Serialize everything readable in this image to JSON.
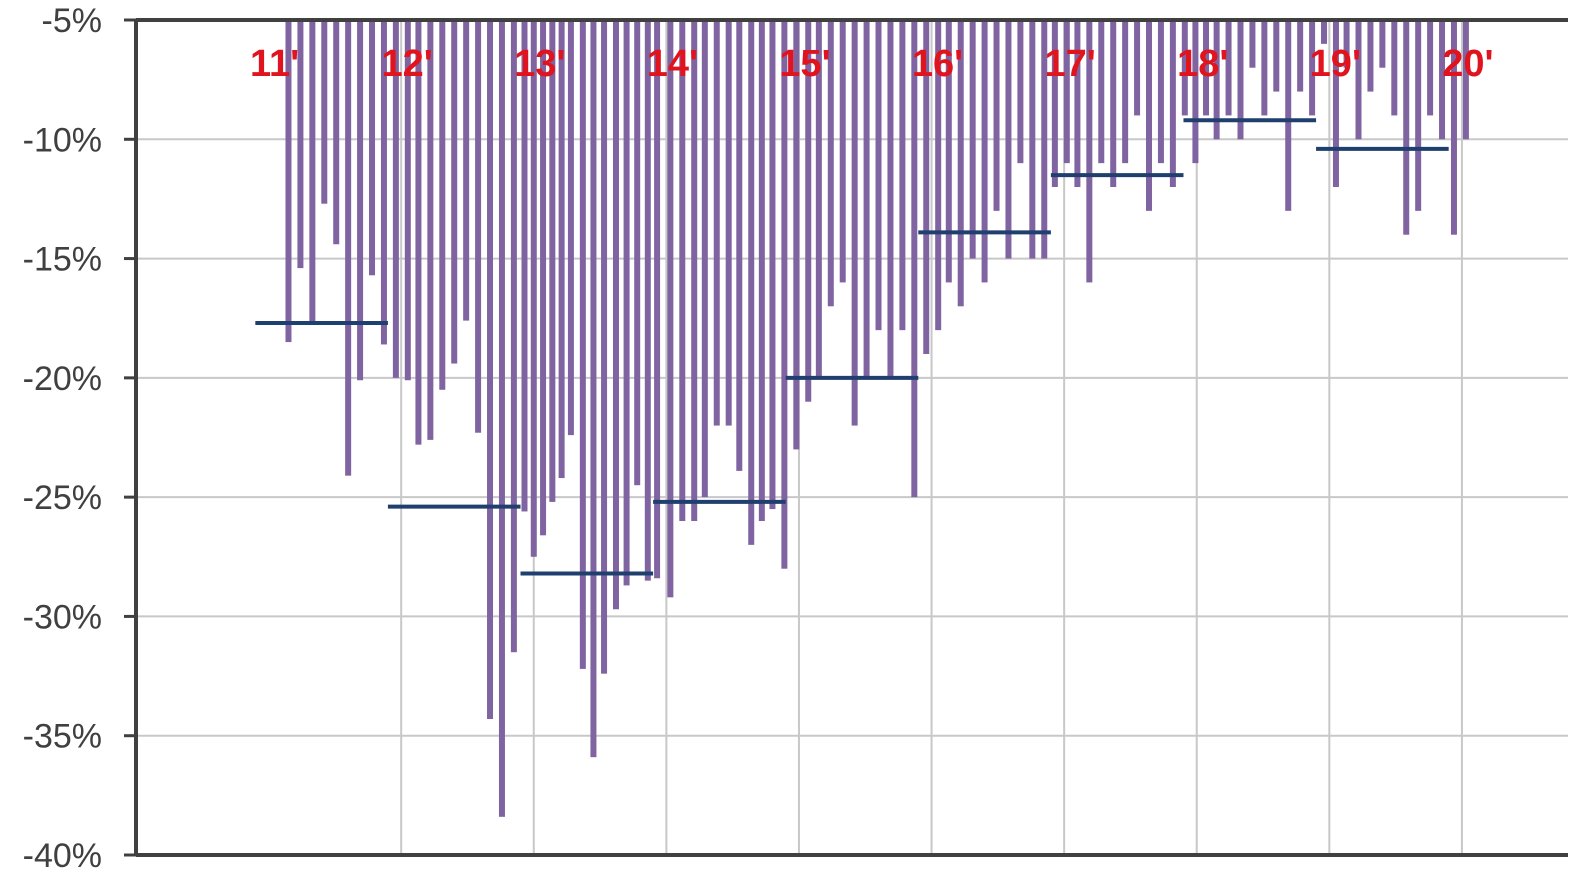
{
  "chart_data": {
    "type": "bar",
    "title": "",
    "xlabel": "",
    "ylabel": "",
    "x_tick_labels": [
      "11'",
      "12'",
      "13'",
      "14'",
      "15'",
      "16'",
      "17'",
      "18'",
      "19'",
      "20'"
    ],
    "y_tick_labels": [
      "-5%",
      "-10%",
      "-15%",
      "-20%",
      "-25%",
      "-30%",
      "-35%",
      "-40%"
    ],
    "y_ticks": [
      -5,
      -10,
      -15,
      -20,
      -25,
      -30,
      -35,
      -40
    ],
    "ylim": [
      -40,
      -5
    ],
    "xlim": [
      2010.0,
      2020.8
    ],
    "bars_hang_from_top": true,
    "grid": true,
    "colors": {
      "bars": "#8064a2",
      "averages": "#1f3f6e",
      "x_tick_labels": "#e0141e",
      "axes": "#404040",
      "grid": "#c8c8c8"
    },
    "series": [
      {
        "values": [
          {
            "x": 2011.15,
            "y": -18.5
          },
          {
            "x": 2011.24,
            "y": -15.4
          },
          {
            "x": 2011.33,
            "y": -17.7
          },
          {
            "x": 2011.42,
            "y": -12.7
          },
          {
            "x": 2011.51,
            "y": -14.4
          },
          {
            "x": 2011.6,
            "y": -24.1
          },
          {
            "x": 2011.69,
            "y": -20.1
          },
          {
            "x": 2011.78,
            "y": -15.7
          },
          {
            "x": 2011.87,
            "y": -18.6
          },
          {
            "x": 2011.96,
            "y": -20.0
          },
          {
            "x": 2012.05,
            "y": -20.1
          },
          {
            "x": 2012.13,
            "y": -22.8
          },
          {
            "x": 2012.22,
            "y": -22.6
          },
          {
            "x": 2012.31,
            "y": -20.5
          },
          {
            "x": 2012.4,
            "y": -19.4
          },
          {
            "x": 2012.49,
            "y": -17.6
          },
          {
            "x": 2012.58,
            "y": -22.3
          },
          {
            "x": 2012.67,
            "y": -34.3
          },
          {
            "x": 2012.76,
            "y": -38.4
          },
          {
            "x": 2012.85,
            "y": -31.5
          },
          {
            "x": 2012.93,
            "y": -25.6
          },
          {
            "x": 2013.0,
            "y": -27.5
          },
          {
            "x": 2013.07,
            "y": -26.6
          },
          {
            "x": 2013.14,
            "y": -25.2
          },
          {
            "x": 2013.21,
            "y": -24.2
          },
          {
            "x": 2013.28,
            "y": -22.4
          },
          {
            "x": 2013.37,
            "y": -32.2
          },
          {
            "x": 2013.45,
            "y": -35.9
          },
          {
            "x": 2013.53,
            "y": -32.4
          },
          {
            "x": 2013.62,
            "y": -29.7
          },
          {
            "x": 2013.7,
            "y": -28.7
          },
          {
            "x": 2013.78,
            "y": -24.5
          },
          {
            "x": 2013.86,
            "y": -28.5
          },
          {
            "x": 2013.93,
            "y": -28.4
          },
          {
            "x": 2014.03,
            "y": -29.2
          },
          {
            "x": 2014.12,
            "y": -26.0
          },
          {
            "x": 2014.21,
            "y": -26.0
          },
          {
            "x": 2014.29,
            "y": -25.0
          },
          {
            "x": 2014.38,
            "y": -22.0
          },
          {
            "x": 2014.47,
            "y": -22.0
          },
          {
            "x": 2014.55,
            "y": -23.9
          },
          {
            "x": 2014.64,
            "y": -27.0
          },
          {
            "x": 2014.72,
            "y": -26.0
          },
          {
            "x": 2014.8,
            "y": -25.5
          },
          {
            "x": 2014.89,
            "y": -28.0
          },
          {
            "x": 2014.98,
            "y": -23.0
          },
          {
            "x": 2015.07,
            "y": -21.0
          },
          {
            "x": 2015.15,
            "y": -20.0
          },
          {
            "x": 2015.24,
            "y": -17.0
          },
          {
            "x": 2015.33,
            "y": -16.0
          },
          {
            "x": 2015.42,
            "y": -22.0
          },
          {
            "x": 2015.51,
            "y": -20.0
          },
          {
            "x": 2015.6,
            "y": -18.0
          },
          {
            "x": 2015.69,
            "y": -20.0
          },
          {
            "x": 2015.78,
            "y": -18.0
          },
          {
            "x": 2015.87,
            "y": -25.0
          },
          {
            "x": 2015.96,
            "y": -19.0
          },
          {
            "x": 2016.05,
            "y": -18.0
          },
          {
            "x": 2016.13,
            "y": -16.0
          },
          {
            "x": 2016.22,
            "y": -17.0
          },
          {
            "x": 2016.31,
            "y": -15.0
          },
          {
            "x": 2016.4,
            "y": -16.0
          },
          {
            "x": 2016.49,
            "y": -13.0
          },
          {
            "x": 2016.58,
            "y": -15.0
          },
          {
            "x": 2016.67,
            "y": -11.0
          },
          {
            "x": 2016.76,
            "y": -15.0
          },
          {
            "x": 2016.85,
            "y": -15.0
          },
          {
            "x": 2016.93,
            "y": -12.0
          },
          {
            "x": 2017.02,
            "y": -11.0
          },
          {
            "x": 2017.1,
            "y": -12.0
          },
          {
            "x": 2017.19,
            "y": -16.0
          },
          {
            "x": 2017.28,
            "y": -11.0
          },
          {
            "x": 2017.37,
            "y": -12.0
          },
          {
            "x": 2017.46,
            "y": -11.0
          },
          {
            "x": 2017.55,
            "y": -9.0
          },
          {
            "x": 2017.64,
            "y": -13.0
          },
          {
            "x": 2017.73,
            "y": -11.0
          },
          {
            "x": 2017.82,
            "y": -12.0
          },
          {
            "x": 2017.91,
            "y": -9.0
          },
          {
            "x": 2017.99,
            "y": -11.0
          },
          {
            "x": 2018.07,
            "y": -9.0
          },
          {
            "x": 2018.15,
            "y": -10.0
          },
          {
            "x": 2018.24,
            "y": -9.0
          },
          {
            "x": 2018.33,
            "y": -10.0
          },
          {
            "x": 2018.42,
            "y": -7.0
          },
          {
            "x": 2018.51,
            "y": -9.0
          },
          {
            "x": 2018.6,
            "y": -8.0
          },
          {
            "x": 2018.69,
            "y": -13.0
          },
          {
            "x": 2018.78,
            "y": -8.0
          },
          {
            "x": 2018.87,
            "y": -9.0
          },
          {
            "x": 2018.96,
            "y": -6.0
          },
          {
            "x": 2019.05,
            "y": -12.0
          },
          {
            "x": 2019.13,
            "y": -7.0
          },
          {
            "x": 2019.22,
            "y": -10.0
          },
          {
            "x": 2019.31,
            "y": -8.0
          },
          {
            "x": 2019.4,
            "y": -7.0
          },
          {
            "x": 2019.49,
            "y": -9.0
          },
          {
            "x": 2019.58,
            "y": -14.0
          },
          {
            "x": 2019.67,
            "y": -13.0
          },
          {
            "x": 2019.76,
            "y": -9.0
          },
          {
            "x": 2019.85,
            "y": -10.0
          },
          {
            "x": 2019.94,
            "y": -14.0
          },
          {
            "x": 2020.03,
            "y": -10.0
          }
        ]
      }
    ],
    "averages": [
      {
        "from": 2010.9,
        "to": 2011.9,
        "value": -17.7
      },
      {
        "from": 2011.9,
        "to": 2012.9,
        "value": -25.4
      },
      {
        "from": 2012.9,
        "to": 2013.9,
        "value": -28.2
      },
      {
        "from": 2013.9,
        "to": 2014.9,
        "value": -25.2
      },
      {
        "from": 2014.9,
        "to": 2015.9,
        "value": -20.0
      },
      {
        "from": 2015.9,
        "to": 2016.9,
        "value": -13.9
      },
      {
        "from": 2016.9,
        "to": 2017.9,
        "value": -11.5
      },
      {
        "from": 2017.9,
        "to": 2018.9,
        "value": -9.2
      },
      {
        "from": 2018.9,
        "to": 2019.9,
        "value": -10.4
      }
    ]
  }
}
